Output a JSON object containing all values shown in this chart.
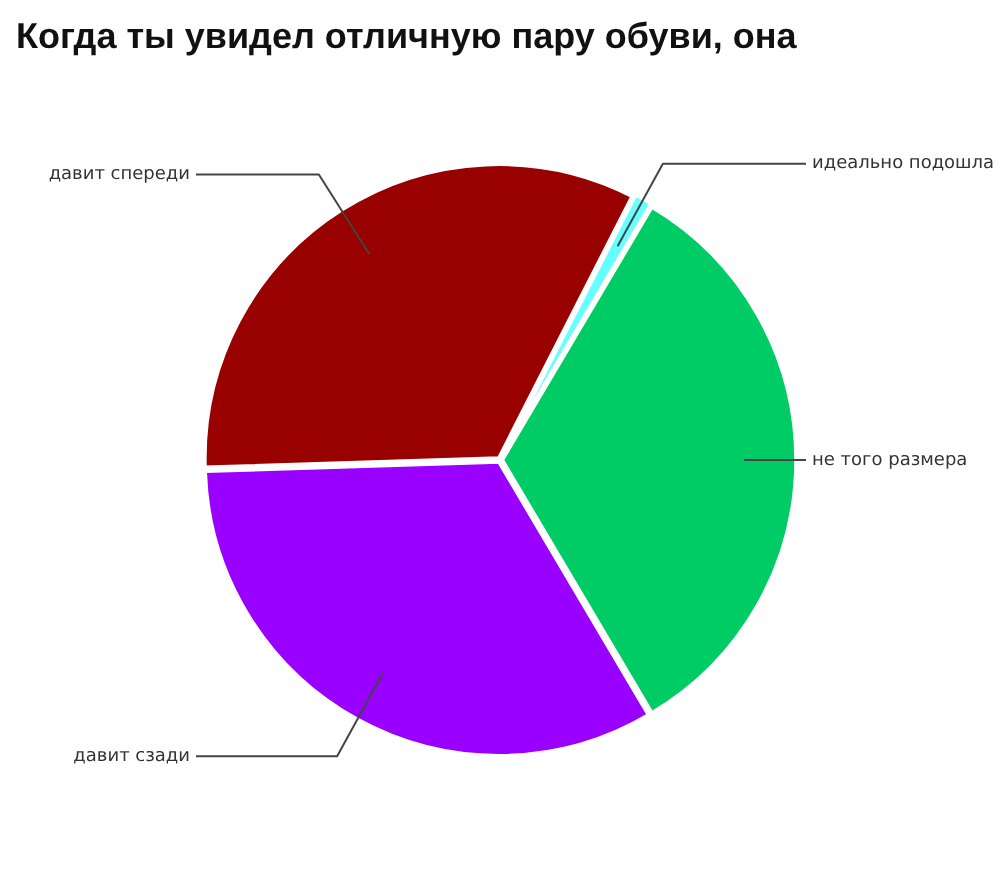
{
  "chart_data": {
    "type": "pie",
    "title": "Когда ты увидел отличную пару обуви, она",
    "categories": [
      "идеально подошла",
      "не того размера",
      "давит сзади",
      "давит спереди"
    ],
    "values": [
      1,
      33,
      33,
      33
    ],
    "colors": [
      "#66ffff",
      "#00cc66",
      "#9900ff",
      "#990000"
    ]
  }
}
